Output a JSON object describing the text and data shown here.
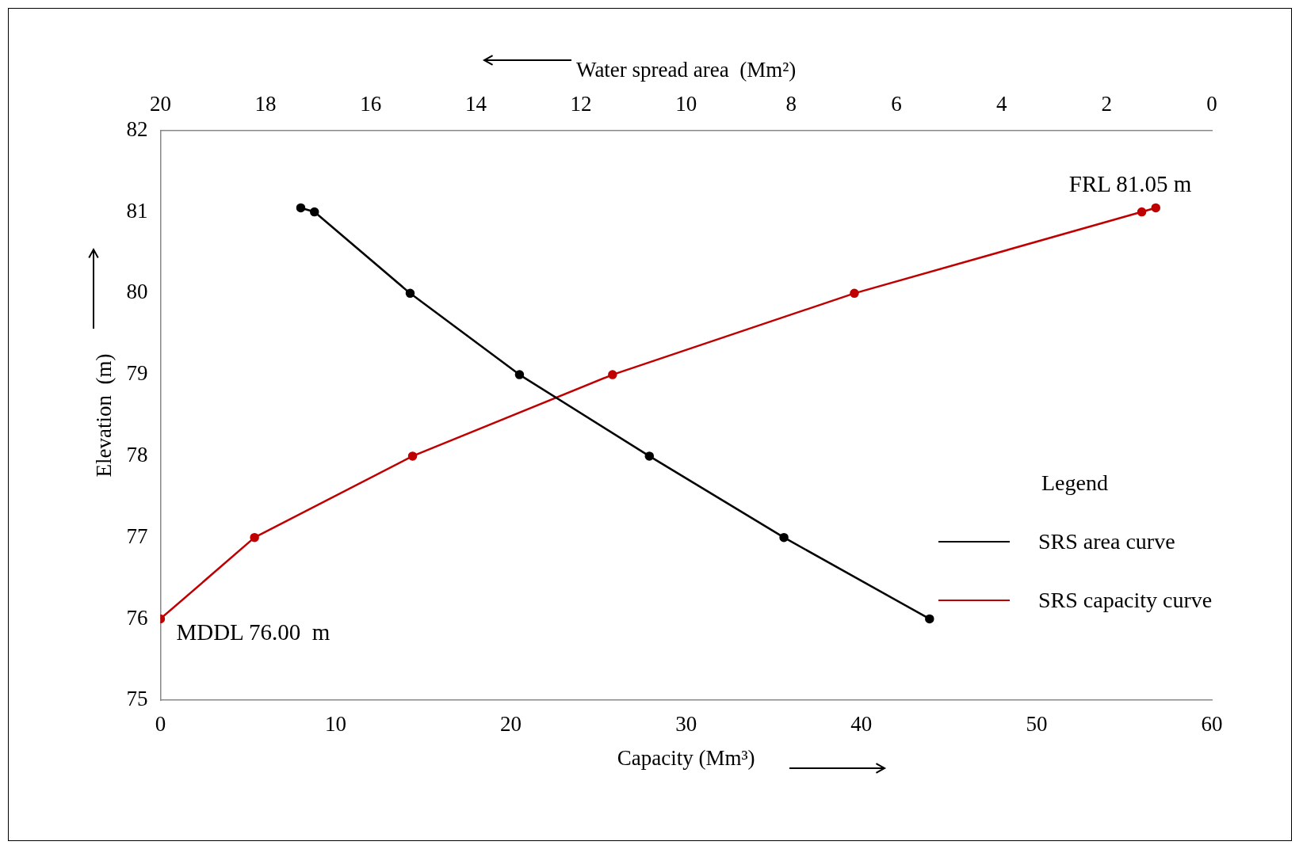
{
  "chart_data": {
    "type": "line",
    "xlabel": "Capacity (Mm³)",
    "x2label": "Water spread area  (Mm²)",
    "ylabel": "Elevation  (m)",
    "legend_title": "Legend",
    "xlim": [
      0,
      60
    ],
    "xticks": [
      0,
      10,
      20,
      30,
      40,
      50,
      60
    ],
    "x2lim": [
      20,
      0
    ],
    "x2ticks": [
      20,
      18,
      16,
      14,
      12,
      10,
      8,
      6,
      4,
      2,
      0
    ],
    "ylim": [
      75,
      82
    ],
    "yticks": [
      75,
      76,
      77,
      78,
      79,
      80,
      81,
      82
    ],
    "grid": false,
    "legend": "bottom right",
    "marker": "circle",
    "line_style": "solid",
    "series": [
      {
        "name": "SRS area curve",
        "color": "#000000",
        "axis": "x2",
        "x": [
          17.33,
          17.07,
          15.25,
          13.17,
          10.7,
          8.14,
          5.37
        ],
        "values": [
          81.05,
          81,
          80,
          79,
          78,
          77,
          76
        ]
      },
      {
        "name": "SRS capacity curve",
        "color": "#c00000",
        "x": [
          0,
          5.37,
          14.39,
          25.8,
          39.6,
          56.0,
          56.8
        ],
        "values": [
          76,
          77,
          78,
          79,
          80,
          81,
          81.05
        ]
      }
    ],
    "annotations": [
      {
        "text": "FRL 81.05 m",
        "x": 56.8,
        "y": 81.05
      },
      {
        "text": "MDDL 76.00  m",
        "x": 0,
        "y": 76
      }
    ]
  }
}
